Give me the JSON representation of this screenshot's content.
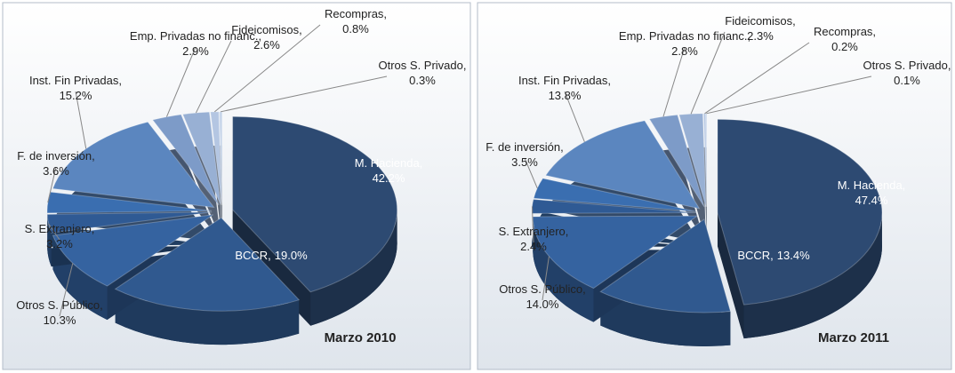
{
  "chart_data": [
    {
      "type": "pie",
      "title": "Marzo 2010",
      "categories": [
        "M. Hacienda,",
        "BCCR,",
        "Otros S. Público,",
        "S. Extranjero,",
        "F. de inversión,",
        "Inst. Fin Privadas,",
        "Emp. Privadas no financ.,",
        "Fideicomisos,",
        "Recompras,",
        "Otros S. Privado,"
      ],
      "values": [
        42.2,
        19.0,
        10.3,
        3.2,
        3.6,
        15.2,
        2.9,
        2.6,
        0.8,
        0.3
      ],
      "value_labels": [
        "42.2%",
        "19.0%",
        "10.3%",
        "3.2%",
        "3.6%",
        "15.2%",
        "2.9%",
        "2.6%",
        "0.8%",
        "0.3%"
      ],
      "colors": [
        "#2d4a72",
        "#30598f",
        "#3563a0",
        "#2f5a94",
        "#3a6eb0",
        "#5b86bf",
        "#7d9bc8",
        "#98b0d4",
        "#b4c6e2",
        "#c8d6ea"
      ]
    },
    {
      "type": "pie",
      "title": "Marzo 2011",
      "categories": [
        "M. Hacienda,",
        "BCCR,",
        "Otros S. Público,",
        "S. Extranjero,",
        "F. de inversión,",
        "Inst. Fin Privadas,",
        "Emp. Privadas no financ.,",
        "Fideicomisos,",
        "Recompras,",
        "Otros S. Privado,"
      ],
      "values": [
        47.4,
        13.4,
        14.0,
        2.4,
        3.5,
        13.8,
        2.8,
        2.3,
        0.2,
        0.1
      ],
      "value_labels": [
        "47.4%",
        "13.4%",
        "14.0%",
        "2.4%",
        "3.5%",
        "13.8%",
        "2.8%",
        "2.3%",
        "0.2%",
        "0.1%"
      ],
      "colors": [
        "#2d4a72",
        "#30598f",
        "#3563a0",
        "#2f5a94",
        "#3a6eb0",
        "#5b86bf",
        "#7d9bc8",
        "#98b0d4",
        "#b4c6e2",
        "#c8d6ea"
      ]
    }
  ]
}
